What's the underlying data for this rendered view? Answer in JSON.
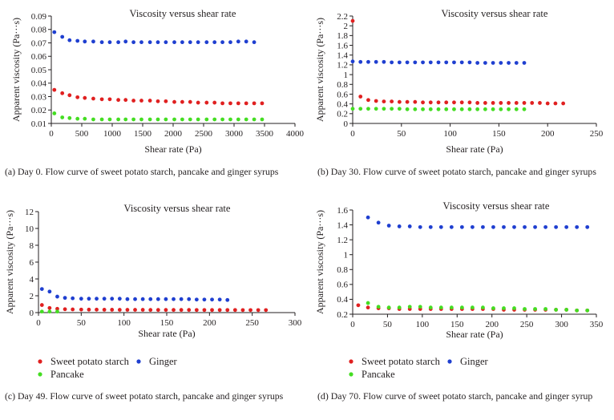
{
  "colors": {
    "sweet": "#e02020",
    "ginger": "#1f3fd0",
    "pancake": "#44dd22",
    "axis": "#231f20"
  },
  "legend": {
    "sweet": "Sweet potato starch",
    "ginger": "Ginger",
    "pancake": "Pancake"
  },
  "captions": [
    "(a) Day 0. Flow curve of sweet potato starch, pancake and ginger syrups",
    "(b) Day 30. Flow curve of sweet potato starch, pancake and ginger syrups",
    "(c) Day 49. Flow curve of sweet potato starch, pancake and ginger syrups",
    "(d) Day 70. Flow curve of sweet potato starch, pancake and ginger syrup"
  ],
  "chart_data": [
    {
      "type": "scatter",
      "title": "Viscosity versus shear rate",
      "xlabel": "Shear rate (Pa)",
      "ylabel": "Apparent viscosity (Pa···s)",
      "xlim": [
        0,
        4000
      ],
      "ylim": [
        0.01,
        0.09
      ],
      "xticks": [
        "0",
        "500",
        "1000",
        "1500",
        "2000",
        "2500",
        "3000",
        "3500",
        "4000"
      ],
      "yticks": [
        "0.01",
        "0.02",
        "0.03",
        "0.04",
        "0.05",
        "0.06",
        "0.07",
        "0.08",
        "0.09"
      ],
      "series": [
        {
          "name": "Ginger",
          "color_key": "ginger",
          "x": [
            50,
            180,
            300,
            430,
            550,
            690,
            830,
            960,
            1100,
            1220,
            1350,
            1480,
            1620,
            1750,
            1880,
            2020,
            2150,
            2280,
            2410,
            2550,
            2680,
            2810,
            2940,
            3070,
            3200,
            3330
          ],
          "y": [
            0.078,
            0.0745,
            0.072,
            0.0715,
            0.071,
            0.071,
            0.0705,
            0.0705,
            0.0705,
            0.071,
            0.0705,
            0.0705,
            0.0705,
            0.0705,
            0.0705,
            0.0705,
            0.0705,
            0.0705,
            0.0705,
            0.0705,
            0.0705,
            0.0705,
            0.0705,
            0.071,
            0.071,
            0.0705
          ]
        },
        {
          "name": "Sweet potato starch",
          "color_key": "sweet",
          "x": [
            50,
            180,
            300,
            430,
            550,
            690,
            830,
            960,
            1100,
            1220,
            1350,
            1480,
            1620,
            1750,
            1880,
            2020,
            2150,
            2280,
            2410,
            2550,
            2680,
            2810,
            2940,
            3070,
            3200,
            3330,
            3460
          ],
          "y": [
            0.035,
            0.0325,
            0.031,
            0.0295,
            0.029,
            0.0285,
            0.028,
            0.028,
            0.0275,
            0.0275,
            0.027,
            0.027,
            0.027,
            0.0265,
            0.0265,
            0.026,
            0.026,
            0.026,
            0.0255,
            0.0255,
            0.0255,
            0.025,
            0.025,
            0.025,
            0.025,
            0.025,
            0.025
          ]
        },
        {
          "name": "Pancake",
          "color_key": "pancake",
          "x": [
            50,
            180,
            300,
            430,
            550,
            690,
            830,
            960,
            1100,
            1220,
            1350,
            1480,
            1620,
            1750,
            1880,
            2020,
            2150,
            2280,
            2410,
            2550,
            2680,
            2810,
            2940,
            3070,
            3200,
            3330,
            3460
          ],
          "y": [
            0.0175,
            0.0145,
            0.014,
            0.0135,
            0.0135,
            0.013,
            0.013,
            0.013,
            0.013,
            0.013,
            0.013,
            0.013,
            0.013,
            0.013,
            0.013,
            0.013,
            0.013,
            0.013,
            0.013,
            0.013,
            0.013,
            0.013,
            0.013,
            0.013,
            0.013,
            0.013,
            0.013
          ]
        }
      ]
    },
    {
      "type": "scatter",
      "title": "Viscosity versus shear rate",
      "xlabel": "Shear rate (Pa)",
      "ylabel": "Apparent viscosity (Pa···s)",
      "xlim": [
        0,
        250
      ],
      "ylim": [
        0,
        2.2
      ],
      "xticks": [
        "0",
        "50",
        "100",
        "150",
        "200",
        "250"
      ],
      "yticks": [
        "0",
        "0.2",
        "0.4",
        "0.6",
        "0.8",
        "1",
        "1.2",
        "1.4",
        "1.6",
        "1.8",
        "2",
        "2.2"
      ],
      "series": [
        {
          "name": "Ginger",
          "color_key": "ginger",
          "x": [
            0,
            8,
            16,
            24,
            32,
            40,
            48,
            56,
            64,
            72,
            80,
            88,
            96,
            104,
            112,
            120,
            128,
            136,
            144,
            152,
            160,
            168,
            176
          ],
          "y": [
            1.27,
            1.26,
            1.26,
            1.26,
            1.26,
            1.25,
            1.25,
            1.25,
            1.25,
            1.25,
            1.25,
            1.25,
            1.25,
            1.25,
            1.25,
            1.25,
            1.24,
            1.24,
            1.24,
            1.24,
            1.24,
            1.24,
            1.24
          ]
        },
        {
          "name": "Sweet potato starch",
          "color_key": "sweet",
          "x": [
            0,
            8,
            16,
            24,
            32,
            40,
            48,
            56,
            64,
            72,
            80,
            88,
            96,
            104,
            112,
            120,
            128,
            136,
            144,
            152,
            160,
            168,
            176,
            184,
            192,
            200,
            208,
            216
          ],
          "y": [
            2.1,
            0.55,
            0.48,
            0.46,
            0.45,
            0.45,
            0.44,
            0.44,
            0.44,
            0.43,
            0.43,
            0.43,
            0.43,
            0.43,
            0.43,
            0.43,
            0.42,
            0.42,
            0.42,
            0.42,
            0.42,
            0.42,
            0.42,
            0.42,
            0.42,
            0.41,
            0.41,
            0.41
          ]
        },
        {
          "name": "Pancake",
          "color_key": "pancake",
          "x": [
            0,
            8,
            16,
            24,
            32,
            40,
            48,
            56,
            64,
            72,
            80,
            88,
            96,
            104,
            112,
            120,
            128,
            136,
            144,
            152,
            160,
            168,
            176
          ],
          "y": [
            0.3,
            0.3,
            0.3,
            0.3,
            0.3,
            0.3,
            0.3,
            0.29,
            0.29,
            0.29,
            0.29,
            0.29,
            0.29,
            0.29,
            0.29,
            0.29,
            0.29,
            0.29,
            0.29,
            0.29,
            0.29,
            0.29,
            0.29
          ]
        }
      ]
    },
    {
      "type": "scatter",
      "title": "Viscosity versus shear rate",
      "xlabel": "Shear rate (Pa)",
      "ylabel": "Apparent viscosity (Pa···s)",
      "xlim": [
        0,
        300
      ],
      "ylim": [
        0,
        12
      ],
      "xticks": [
        "0",
        "50",
        "100",
        "150",
        "200",
        "250",
        "300"
      ],
      "yticks": [
        "0",
        "2",
        "4",
        "6",
        "8",
        "10",
        "12"
      ],
      "series": [
        {
          "name": "Ginger",
          "color_key": "ginger",
          "x": [
            4,
            13,
            22,
            31,
            40,
            50,
            59,
            68,
            77,
            86,
            95,
            104,
            113,
            122,
            131,
            140,
            149,
            158,
            167,
            176,
            185,
            194,
            203,
            212,
            221
          ],
          "y": [
            2.8,
            2.5,
            1.9,
            1.75,
            1.7,
            1.65,
            1.65,
            1.65,
            1.65,
            1.65,
            1.65,
            1.6,
            1.6,
            1.6,
            1.6,
            1.6,
            1.6,
            1.6,
            1.6,
            1.6,
            1.55,
            1.55,
            1.55,
            1.55,
            1.5
          ]
        },
        {
          "name": "Sweet potato starch",
          "color_key": "sweet",
          "x": [
            4,
            13,
            22,
            31,
            40,
            50,
            59,
            68,
            77,
            86,
            95,
            104,
            113,
            122,
            131,
            140,
            149,
            158,
            167,
            176,
            185,
            194,
            203,
            212,
            221,
            230,
            239,
            248,
            257,
            266
          ],
          "y": [
            0.9,
            0.55,
            0.45,
            0.4,
            0.38,
            0.36,
            0.35,
            0.35,
            0.34,
            0.34,
            0.33,
            0.33,
            0.33,
            0.33,
            0.32,
            0.32,
            0.32,
            0.32,
            0.32,
            0.32,
            0.31,
            0.31,
            0.31,
            0.31,
            0.31,
            0.31,
            0.3,
            0.3,
            0.3,
            0.3
          ]
        },
        {
          "name": "Pancake",
          "color_key": "pancake",
          "x": [
            4,
            13,
            22
          ],
          "y": [
            0.12,
            0.12,
            0.12
          ]
        }
      ]
    },
    {
      "type": "scatter",
      "title": "Viscosity versus shear rate",
      "xlabel": "Shear rate (Pa)",
      "ylabel": "Apparent viscosity (Pa···s)",
      "xlim": [
        0,
        350
      ],
      "ylim": [
        0.2,
        1.6
      ],
      "xticks": [
        "0",
        "50",
        "100",
        "150",
        "200",
        "250",
        "300",
        "350"
      ],
      "yticks": [
        "0.2",
        "0.4",
        "0.6",
        "0.8",
        "1",
        "1.2",
        "1.4",
        "1.6"
      ],
      "series": [
        {
          "name": "Ginger",
          "color_key": "ginger",
          "x": [
            22,
            37,
            52,
            67,
            82,
            97,
            112,
            127,
            142,
            157,
            172,
            187,
            202,
            217,
            232,
            247,
            262,
            277,
            292,
            307,
            322,
            337
          ],
          "y": [
            1.5,
            1.43,
            1.39,
            1.38,
            1.38,
            1.37,
            1.37,
            1.37,
            1.37,
            1.37,
            1.37,
            1.37,
            1.37,
            1.37,
            1.37,
            1.37,
            1.37,
            1.37,
            1.37,
            1.37,
            1.37,
            1.37
          ]
        },
        {
          "name": "Sweet potato starch",
          "color_key": "sweet",
          "x": [
            8,
            22,
            37,
            52,
            67,
            82,
            97,
            112,
            127,
            142,
            157,
            172,
            187,
            202,
            217,
            232,
            247,
            262,
            277,
            292,
            307,
            322,
            337
          ],
          "y": [
            0.32,
            0.29,
            0.28,
            0.28,
            0.27,
            0.27,
            0.27,
            0.27,
            0.27,
            0.27,
            0.27,
            0.27,
            0.27,
            0.27,
            0.26,
            0.26,
            0.26,
            0.26,
            0.26,
            0.26,
            0.26,
            0.25,
            0.25
          ]
        },
        {
          "name": "Pancake",
          "color_key": "pancake",
          "x": [
            22,
            37,
            52,
            67,
            82,
            97,
            112,
            127,
            142,
            157,
            172,
            187,
            202,
            217,
            232,
            247,
            262,
            277,
            292,
            307,
            322,
            337
          ],
          "y": [
            0.35,
            0.3,
            0.29,
            0.29,
            0.3,
            0.3,
            0.29,
            0.29,
            0.29,
            0.29,
            0.29,
            0.29,
            0.28,
            0.28,
            0.28,
            0.27,
            0.27,
            0.27,
            0.26,
            0.26,
            0.25,
            0.25
          ]
        }
      ]
    }
  ]
}
